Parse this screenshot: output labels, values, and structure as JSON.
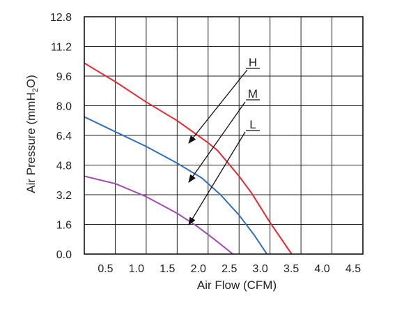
{
  "chart_data": {
    "type": "line",
    "xlabel": "Air Flow (CFM)",
    "ylabel": "Air Pressure (mmH",
    "ylabel_sub": "2",
    "ylabel_end": "O)",
    "xlim": [
      0,
      4.5
    ],
    "ylim": [
      0,
      12.8
    ],
    "x_ticks": [
      "0.5",
      "1.0",
      "1.5",
      "2.0",
      "2.5",
      "3.0",
      "3.5",
      "4.0",
      "4.5"
    ],
    "x_tick_values": [
      0.5,
      1.0,
      1.5,
      2.0,
      2.5,
      3.0,
      3.5,
      4.0,
      4.5
    ],
    "y_ticks": [
      "0.0",
      "1.6",
      "3.2",
      "4.8",
      "6.4",
      "8.0",
      "9.6",
      "11.2",
      "12.8"
    ],
    "y_tick_values": [
      0.0,
      1.6,
      3.2,
      4.8,
      6.4,
      8.0,
      9.6,
      11.2,
      12.8
    ],
    "grid": true,
    "series": [
      {
        "name": "H",
        "color": "#e8282e",
        "points": [
          [
            0.0,
            10.3
          ],
          [
            0.5,
            9.3
          ],
          [
            1.0,
            8.2
          ],
          [
            1.5,
            7.2
          ],
          [
            2.0,
            6.0
          ],
          [
            2.15,
            5.6
          ],
          [
            2.5,
            4.2
          ],
          [
            2.7,
            3.3
          ],
          [
            3.0,
            1.7
          ],
          [
            3.35,
            0.0
          ]
        ]
      },
      {
        "name": "M",
        "color": "#2f6fbd",
        "points": [
          [
            0.0,
            7.4
          ],
          [
            0.5,
            6.6
          ],
          [
            1.0,
            5.8
          ],
          [
            1.5,
            4.9
          ],
          [
            1.9,
            4.1
          ],
          [
            2.2,
            3.2
          ],
          [
            2.5,
            2.1
          ],
          [
            2.75,
            1.0
          ],
          [
            2.95,
            0.0
          ]
        ]
      },
      {
        "name": "L",
        "color": "#a64ab3",
        "points": [
          [
            0.0,
            4.2
          ],
          [
            0.5,
            3.8
          ],
          [
            1.0,
            3.1
          ],
          [
            1.5,
            2.2
          ],
          [
            1.8,
            1.55
          ],
          [
            2.1,
            0.8
          ],
          [
            2.4,
            0.0
          ]
        ]
      }
    ],
    "annotations": [
      "H",
      "M",
      "L"
    ]
  }
}
